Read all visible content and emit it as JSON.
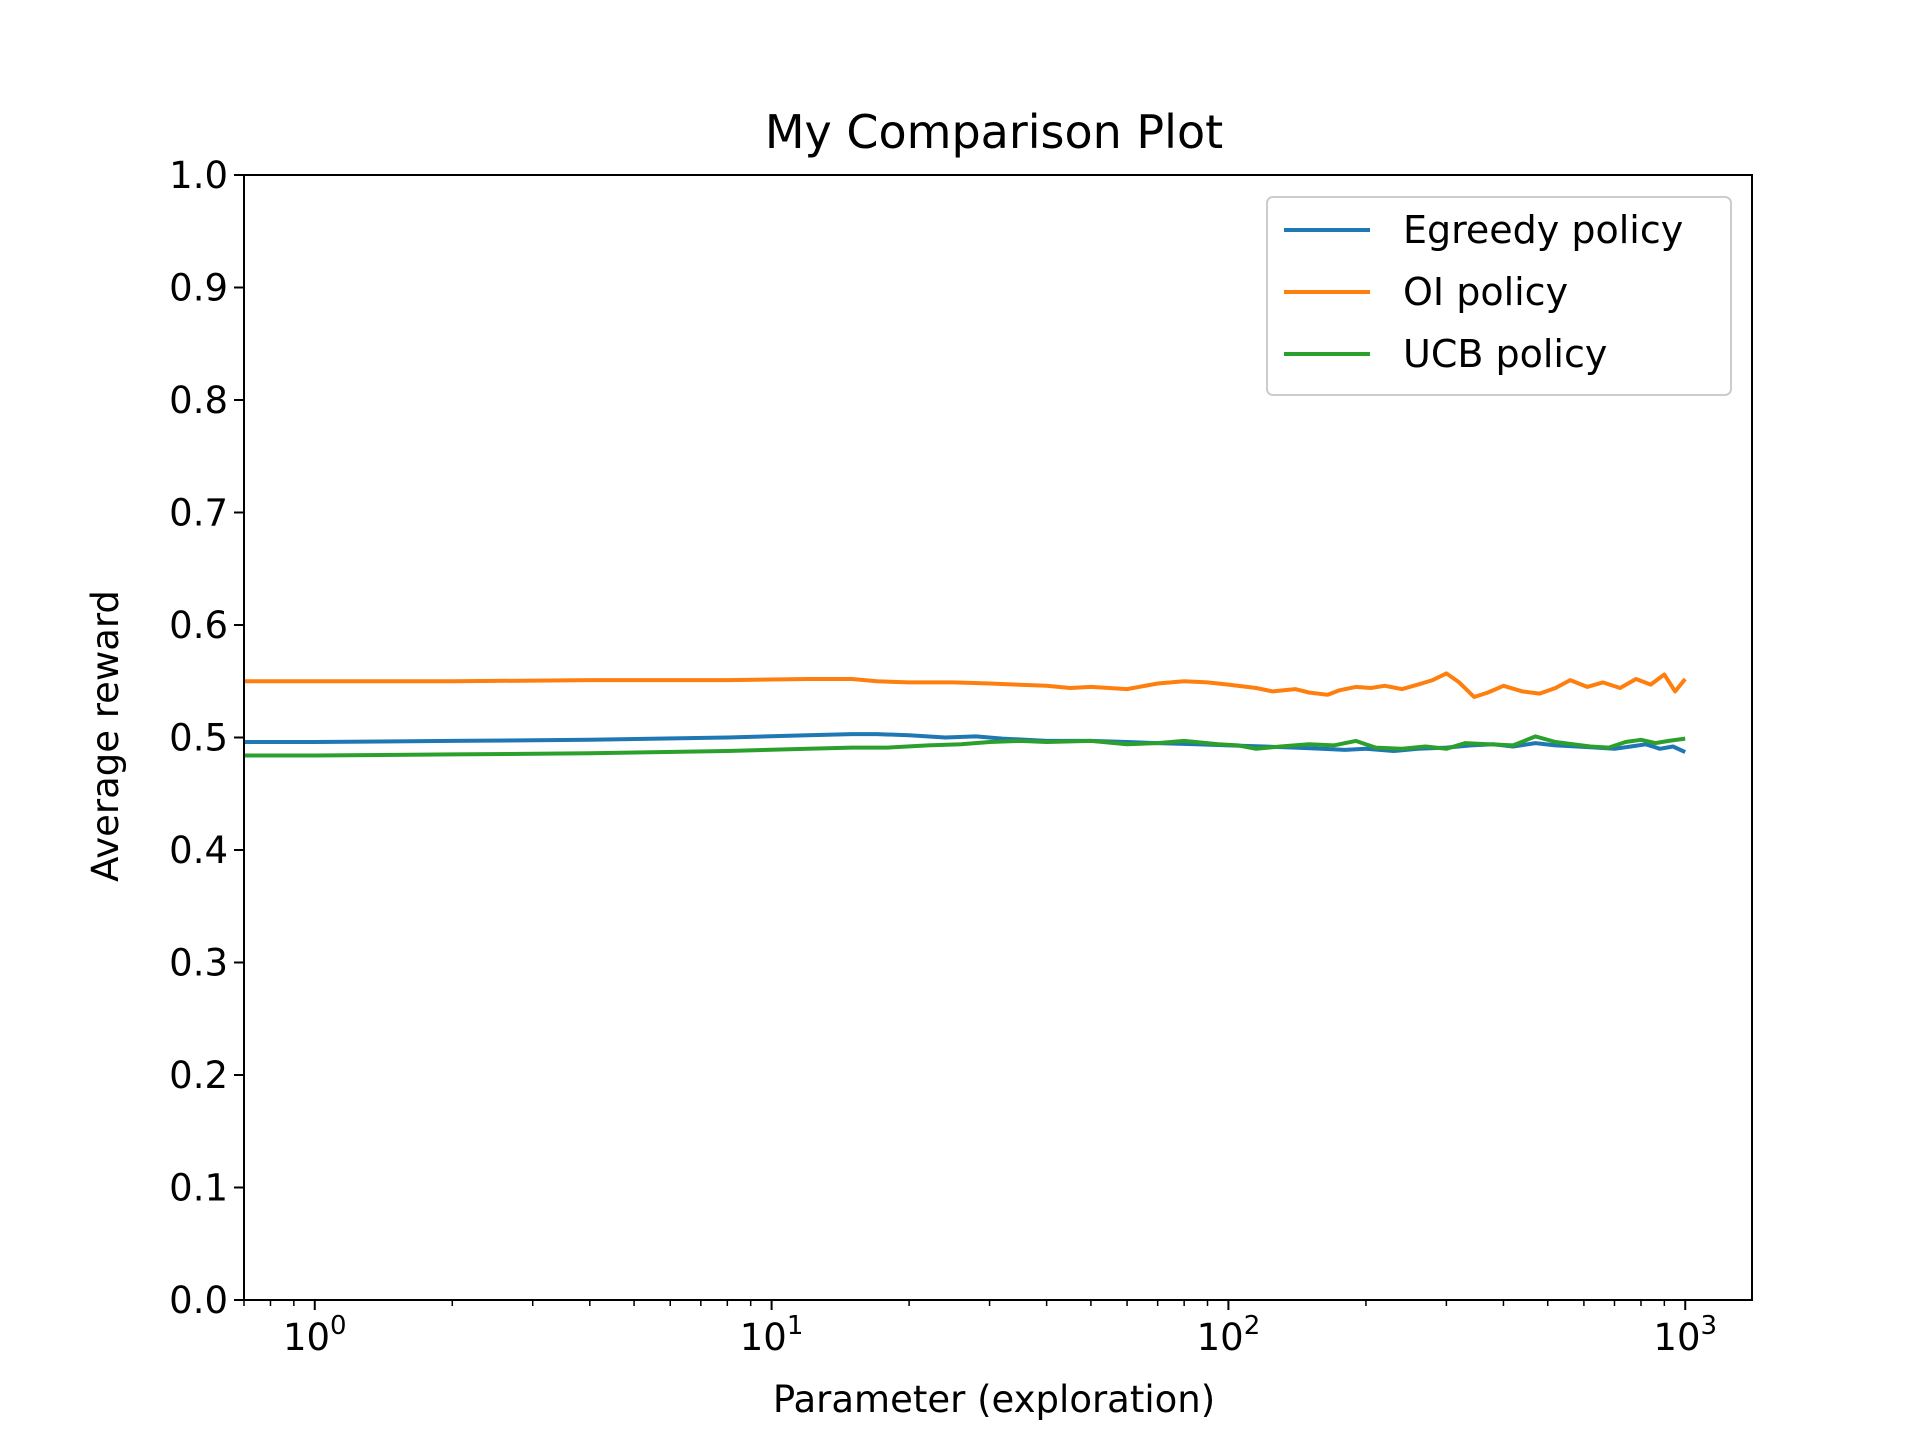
{
  "chart_data": {
    "type": "line",
    "title": "My Comparison Plot",
    "xlabel": "Parameter (exploration)",
    "ylabel": "Average reward",
    "xscale": "log",
    "xlim": [
      0.7,
      1400
    ],
    "ylim": [
      0,
      1
    ],
    "grid": false,
    "legend_position": "upper-right",
    "x_ticks": [
      {
        "value": 1,
        "base": "10",
        "exp": "0"
      },
      {
        "value": 10,
        "base": "10",
        "exp": "1"
      },
      {
        "value": 100,
        "base": "10",
        "exp": "2"
      },
      {
        "value": 1000,
        "base": "10",
        "exp": "3"
      }
    ],
    "y_ticks": [
      {
        "value": 0.0,
        "label": "0.0"
      },
      {
        "value": 0.1,
        "label": "0.1"
      },
      {
        "value": 0.2,
        "label": "0.2"
      },
      {
        "value": 0.3,
        "label": "0.3"
      },
      {
        "value": 0.4,
        "label": "0.4"
      },
      {
        "value": 0.5,
        "label": "0.5"
      },
      {
        "value": 0.6,
        "label": "0.6"
      },
      {
        "value": 0.7,
        "label": "0.7"
      },
      {
        "value": 0.8,
        "label": "0.8"
      },
      {
        "value": 0.9,
        "label": "0.9"
      },
      {
        "value": 1.0,
        "label": "1.0"
      }
    ],
    "series": [
      {
        "name": "Egreedy policy",
        "color": "#1f77b4",
        "points": [
          [
            0.7,
            0.496
          ],
          [
            1,
            0.496
          ],
          [
            2,
            0.497
          ],
          [
            4,
            0.498
          ],
          [
            8,
            0.5
          ],
          [
            12,
            0.502
          ],
          [
            15,
            0.503
          ],
          [
            17,
            0.503
          ],
          [
            20,
            0.502
          ],
          [
            24,
            0.5
          ],
          [
            28,
            0.501
          ],
          [
            32,
            0.499
          ],
          [
            40,
            0.497
          ],
          [
            50,
            0.497
          ],
          [
            60,
            0.496
          ],
          [
            70,
            0.495
          ],
          [
            85,
            0.494
          ],
          [
            100,
            0.493
          ],
          [
            120,
            0.492
          ],
          [
            140,
            0.491
          ],
          [
            160,
            0.49
          ],
          [
            180,
            0.489
          ],
          [
            200,
            0.49
          ],
          [
            230,
            0.488
          ],
          [
            260,
            0.49
          ],
          [
            300,
            0.491
          ],
          [
            340,
            0.493
          ],
          [
            380,
            0.494
          ],
          [
            420,
            0.492
          ],
          [
            470,
            0.495
          ],
          [
            520,
            0.493
          ],
          [
            580,
            0.492
          ],
          [
            640,
            0.491
          ],
          [
            700,
            0.49
          ],
          [
            760,
            0.492
          ],
          [
            820,
            0.494
          ],
          [
            880,
            0.49
          ],
          [
            940,
            0.492
          ],
          [
            1000,
            0.487
          ]
        ]
      },
      {
        "name": "OI policy",
        "color": "#ff7f0e",
        "points": [
          [
            0.7,
            0.55
          ],
          [
            1,
            0.55
          ],
          [
            2,
            0.55
          ],
          [
            4,
            0.551
          ],
          [
            8,
            0.551
          ],
          [
            12,
            0.552
          ],
          [
            15,
            0.552
          ],
          [
            17,
            0.55
          ],
          [
            20,
            0.549
          ],
          [
            25,
            0.549
          ],
          [
            30,
            0.548
          ],
          [
            40,
            0.546
          ],
          [
            45,
            0.544
          ],
          [
            50,
            0.545
          ],
          [
            60,
            0.543
          ],
          [
            70,
            0.548
          ],
          [
            80,
            0.55
          ],
          [
            90,
            0.549
          ],
          [
            100,
            0.547
          ],
          [
            115,
            0.544
          ],
          [
            125,
            0.541
          ],
          [
            140,
            0.543
          ],
          [
            150,
            0.54
          ],
          [
            165,
            0.538
          ],
          [
            175,
            0.542
          ],
          [
            190,
            0.545
          ],
          [
            205,
            0.544
          ],
          [
            220,
            0.546
          ],
          [
            240,
            0.543
          ],
          [
            260,
            0.547
          ],
          [
            280,
            0.551
          ],
          [
            300,
            0.557
          ],
          [
            320,
            0.549
          ],
          [
            345,
            0.536
          ],
          [
            370,
            0.54
          ],
          [
            400,
            0.546
          ],
          [
            440,
            0.541
          ],
          [
            480,
            0.539
          ],
          [
            520,
            0.544
          ],
          [
            560,
            0.551
          ],
          [
            610,
            0.545
          ],
          [
            660,
            0.549
          ],
          [
            720,
            0.544
          ],
          [
            780,
            0.552
          ],
          [
            840,
            0.547
          ],
          [
            900,
            0.556
          ],
          [
            950,
            0.541
          ],
          [
            1000,
            0.552
          ]
        ]
      },
      {
        "name": "UCB policy",
        "color": "#2ca02c",
        "points": [
          [
            0.7,
            0.484
          ],
          [
            1,
            0.484
          ],
          [
            2,
            0.485
          ],
          [
            4,
            0.486
          ],
          [
            8,
            0.488
          ],
          [
            12,
            0.49
          ],
          [
            15,
            0.491
          ],
          [
            18,
            0.491
          ],
          [
            22,
            0.493
          ],
          [
            26,
            0.494
          ],
          [
            30,
            0.496
          ],
          [
            35,
            0.497
          ],
          [
            40,
            0.496
          ],
          [
            50,
            0.497
          ],
          [
            60,
            0.494
          ],
          [
            70,
            0.495
          ],
          [
            80,
            0.497
          ],
          [
            95,
            0.494
          ],
          [
            105,
            0.493
          ],
          [
            115,
            0.49
          ],
          [
            130,
            0.492
          ],
          [
            150,
            0.494
          ],
          [
            170,
            0.493
          ],
          [
            190,
            0.497
          ],
          [
            210,
            0.491
          ],
          [
            240,
            0.49
          ],
          [
            270,
            0.492
          ],
          [
            300,
            0.49
          ],
          [
            330,
            0.495
          ],
          [
            370,
            0.494
          ],
          [
            420,
            0.493
          ],
          [
            470,
            0.501
          ],
          [
            520,
            0.496
          ],
          [
            570,
            0.494
          ],
          [
            620,
            0.492
          ],
          [
            680,
            0.491
          ],
          [
            740,
            0.496
          ],
          [
            800,
            0.498
          ],
          [
            860,
            0.495
          ],
          [
            920,
            0.497
          ],
          [
            1000,
            0.499
          ]
        ]
      }
    ]
  }
}
